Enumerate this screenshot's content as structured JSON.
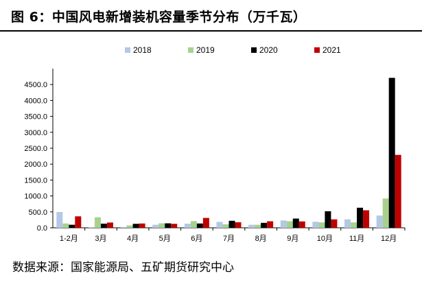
{
  "title": "图 6：中国风电新增装机容量季节分布（万千瓦）",
  "source": "数据来源：国家能源局、五矿期货研究中心",
  "chart_data": {
    "type": "bar",
    "categories": [
      "1-2月",
      "3月",
      "4月",
      "5月",
      "6月",
      "7月",
      "8月",
      "9月",
      "10月",
      "11月",
      "12月"
    ],
    "series": [
      {
        "name": "2018",
        "color": "#b4c7e7",
        "values": [
          495,
          20,
          25,
          95,
          130,
          185,
          95,
          230,
          190,
          265,
          385
        ]
      },
      {
        "name": "2019",
        "color": "#a9d18e",
        "values": [
          135,
          330,
          75,
          140,
          210,
          110,
          95,
          205,
          170,
          170,
          920
        ]
      },
      {
        "name": "2020",
        "color": "#000000",
        "values": [
          95,
          130,
          125,
          140,
          135,
          220,
          155,
          290,
          520,
          630,
          4710
        ]
      },
      {
        "name": "2021",
        "color": "#c00000",
        "values": [
          360,
          165,
          135,
          125,
          310,
          175,
          205,
          200,
          265,
          550,
          2290
        ]
      }
    ],
    "ylim": [
      0,
      5000
    ],
    "yticks": [
      "0.0",
      "500.0",
      "1000.0",
      "1500.0",
      "2000.0",
      "2500.0",
      "3000.0",
      "3500.0",
      "4000.0",
      "4500.0"
    ],
    "legend_position": "top-center",
    "grid": false
  }
}
